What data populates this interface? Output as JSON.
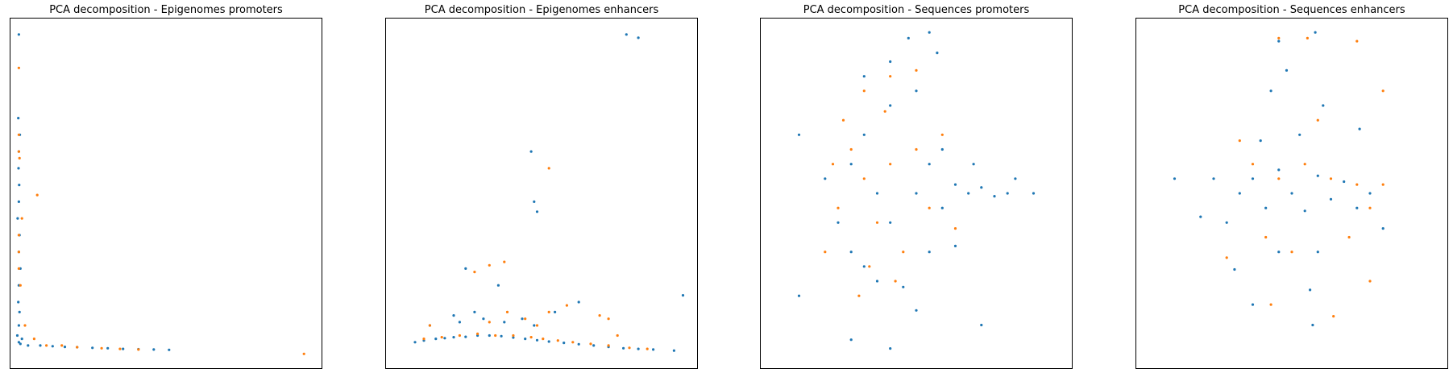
{
  "figure": {
    "colors": {
      "class_0": "#1f77b4",
      "class_1": "#ff7f0e",
      "axes": "#000000",
      "background": "#ffffff"
    }
  },
  "chart_data": [
    {
      "type": "scatter",
      "title": "PCA decomposition - Epigenomes promoters",
      "xlabel": "",
      "ylabel": "",
      "xlim": [
        -2,
        100
      ],
      "ylim": [
        -5,
        100
      ],
      "grid": false,
      "ticks": false,
      "series": [
        {
          "color": "#1f77b4",
          "points": [
            [
              1,
              3
            ],
            [
              1.5,
              2.5
            ],
            [
              2,
              4
            ],
            [
              0.5,
              5
            ],
            [
              1,
              8
            ],
            [
              1.2,
              12
            ],
            [
              0.8,
              15
            ],
            [
              1,
              20
            ],
            [
              1.5,
              25
            ],
            [
              1,
              30
            ],
            [
              1.2,
              35
            ],
            [
              0.6,
              40
            ],
            [
              1,
              45
            ],
            [
              1.1,
              50
            ],
            [
              0.9,
              55
            ],
            [
              1,
              60
            ],
            [
              1.3,
              65
            ],
            [
              0.8,
              70
            ],
            [
              1,
              95
            ],
            [
              4,
              2
            ],
            [
              8,
              2
            ],
            [
              12,
              1.8
            ],
            [
              16,
              1.6
            ],
            [
              20,
              1.5
            ],
            [
              25,
              1.3
            ],
            [
              30,
              1.2
            ],
            [
              35,
              1
            ],
            [
              40,
              0.9
            ],
            [
              45,
              0.8
            ],
            [
              50,
              0.7
            ]
          ]
        },
        {
          "color": "#ff7f0e",
          "points": [
            [
              1,
              85
            ],
            [
              1,
              65
            ],
            [
              1,
              60
            ],
            [
              1.2,
              58
            ],
            [
              7,
              47
            ],
            [
              2,
              40
            ],
            [
              1,
              35
            ],
            [
              1,
              30
            ],
            [
              1,
              25
            ],
            [
              1.5,
              20
            ],
            [
              3,
              8
            ],
            [
              6,
              4
            ],
            [
              10,
              2
            ],
            [
              15,
              2
            ],
            [
              20,
              1.5
            ],
            [
              28,
              1.2
            ],
            [
              34,
              1
            ],
            [
              40,
              0.8
            ],
            [
              94,
              -0.5
            ]
          ]
        }
      ]
    },
    {
      "type": "scatter",
      "title": "PCA decomposition - Epigenomes enhancers",
      "xlabel": "",
      "ylabel": "",
      "xlim": [
        -5,
        100
      ],
      "ylim": [
        -5,
        100
      ],
      "grid": false,
      "ticks": false,
      "series": [
        {
          "color": "#1f77b4",
          "points": [
            [
              5,
              3
            ],
            [
              8,
              3.5
            ],
            [
              12,
              4
            ],
            [
              15,
              4.2
            ],
            [
              18,
              4.5
            ],
            [
              22,
              4.6
            ],
            [
              26,
              5
            ],
            [
              30,
              5
            ],
            [
              34,
              4.8
            ],
            [
              38,
              4.4
            ],
            [
              42,
              4
            ],
            [
              46,
              3.6
            ],
            [
              50,
              3.2
            ],
            [
              55,
              2.8
            ],
            [
              60,
              2.4
            ],
            [
              65,
              2
            ],
            [
              70,
              1.6
            ],
            [
              75,
              1.2
            ],
            [
              80,
              1
            ],
            [
              85,
              0.8
            ],
            [
              92,
              0.5
            ],
            [
              10,
              8
            ],
            [
              20,
              9
            ],
            [
              28,
              10
            ],
            [
              35,
              9
            ],
            [
              45,
              8
            ],
            [
              52,
              12
            ],
            [
              33,
              20
            ],
            [
              41,
              10
            ],
            [
              25,
              12
            ],
            [
              18,
              11
            ],
            [
              76,
              95
            ],
            [
              80,
              94
            ],
            [
              44,
              60
            ],
            [
              45,
              45
            ],
            [
              46,
              42
            ],
            [
              95,
              17
            ],
            [
              60,
              15
            ],
            [
              22,
              25
            ]
          ]
        },
        {
          "color": "#ff7f0e",
          "points": [
            [
              8,
              4
            ],
            [
              14,
              4.5
            ],
            [
              20,
              5
            ],
            [
              26,
              5.5
            ],
            [
              32,
              5
            ],
            [
              38,
              5
            ],
            [
              44,
              4.5
            ],
            [
              48,
              4
            ],
            [
              53,
              3.5
            ],
            [
              58,
              3
            ],
            [
              64,
              2.5
            ],
            [
              70,
              2
            ],
            [
              77,
              1.3
            ],
            [
              83,
              1
            ],
            [
              10,
              8
            ],
            [
              30,
              9
            ],
            [
              36,
              12
            ],
            [
              42,
              10
            ],
            [
              46,
              8
            ],
            [
              50,
              12
            ],
            [
              56,
              14
            ],
            [
              67,
              11
            ],
            [
              70,
              10
            ],
            [
              73,
              5
            ],
            [
              35,
              27
            ],
            [
              30,
              26
            ],
            [
              25,
              24
            ],
            [
              50,
              55
            ]
          ]
        }
      ]
    },
    {
      "type": "scatter",
      "title": "PCA decomposition - Sequences promoters",
      "xlabel": "",
      "ylabel": "",
      "xlim": [
        -6,
        6
      ],
      "ylim": [
        -6,
        6
      ],
      "grid": false,
      "ticks": false,
      "series": [
        {
          "color": "#1f77b4",
          "points": [
            [
              -2.5,
              1
            ],
            [
              -2,
              2
            ],
            [
              -1.5,
              0
            ],
            [
              -1,
              -1
            ],
            [
              0,
              0
            ],
            [
              0.5,
              1
            ],
            [
              1,
              -0.5
            ],
            [
              1.5,
              0.3
            ],
            [
              2,
              0
            ],
            [
              2.5,
              0.2
            ],
            [
              3,
              -0.1
            ],
            [
              -3,
              -1
            ],
            [
              -2,
              -2.5
            ],
            [
              -1,
              3
            ],
            [
              0,
              3.5
            ],
            [
              -1.5,
              -3
            ],
            [
              0.5,
              -2
            ],
            [
              1,
              1.5
            ],
            [
              -3.5,
              0.5
            ],
            [
              -2.5,
              -2
            ],
            [
              3.5,
              0
            ],
            [
              4.5,
              0
            ],
            [
              -1,
              4.5
            ],
            [
              0,
              -4
            ],
            [
              -2,
              4
            ],
            [
              1.5,
              -1.8
            ],
            [
              2.2,
              1
            ],
            [
              -0.5,
              -3.2
            ],
            [
              3.8,
              0.5
            ],
            [
              -4.5,
              -3.5
            ],
            [
              -4.5,
              2
            ],
            [
              -0.3,
              5.3
            ],
            [
              0.8,
              4.8
            ],
            [
              2.5,
              -4.5
            ],
            [
              -2.5,
              -5
            ],
            [
              -1,
              -5.3
            ],
            [
              0.5,
              5.5
            ]
          ]
        },
        {
          "color": "#ff7f0e",
          "points": [
            [
              -2.5,
              1.5
            ],
            [
              -2,
              0.5
            ],
            [
              -1.5,
              -1
            ],
            [
              -1,
              1
            ],
            [
              -0.5,
              -2
            ],
            [
              0,
              1.5
            ],
            [
              -3,
              -0.5
            ],
            [
              -2.8,
              2.5
            ],
            [
              -1.8,
              -2.5
            ],
            [
              -2,
              3.5
            ],
            [
              0.5,
              -0.5
            ],
            [
              -3.5,
              -2
            ],
            [
              -2.2,
              -3.5
            ],
            [
              1,
              2
            ],
            [
              -1,
              4
            ],
            [
              0,
              4.2
            ],
            [
              -3.2,
              1
            ],
            [
              -0.8,
              -3
            ],
            [
              1.5,
              -1.2
            ],
            [
              -1.2,
              2.8
            ]
          ]
        }
      ]
    },
    {
      "type": "scatter",
      "title": "PCA decomposition - Sequences enhancers",
      "xlabel": "",
      "ylabel": "",
      "xlim": [
        -6,
        6
      ],
      "ylim": [
        -6,
        6
      ],
      "grid": false,
      "ticks": false,
      "series": [
        {
          "color": "#1f77b4",
          "points": [
            [
              -1.5,
              0.5
            ],
            [
              -1,
              -0.5
            ],
            [
              -0.5,
              0.8
            ],
            [
              0,
              0
            ],
            [
              0.5,
              -0.6
            ],
            [
              1,
              0.6
            ],
            [
              1.5,
              -0.2
            ],
            [
              2,
              0.4
            ],
            [
              -2,
              0
            ],
            [
              -2.5,
              -1
            ],
            [
              -1.2,
              1.8
            ],
            [
              0.3,
              2
            ],
            [
              1,
              -2
            ],
            [
              -0.5,
              -2
            ],
            [
              2.5,
              -0.5
            ],
            [
              -3,
              0.5
            ],
            [
              3,
              0
            ],
            [
              -0.8,
              3.5
            ],
            [
              0.7,
              -3.3
            ],
            [
              -2.2,
              -2.6
            ],
            [
              -0.2,
              4.2
            ],
            [
              1.2,
              3
            ],
            [
              -1.5,
              -3.8
            ],
            [
              0.8,
              -4.5
            ],
            [
              -0.5,
              5.2
            ],
            [
              2.6,
              2.2
            ],
            [
              3.5,
              -1.2
            ],
            [
              -3.5,
              -0.8
            ],
            [
              -4.5,
              0.5
            ],
            [
              0.9,
              5.5
            ]
          ]
        },
        {
          "color": "#ff7f0e",
          "points": [
            [
              -1.5,
              1
            ],
            [
              -0.5,
              0.5
            ],
            [
              0.5,
              1
            ],
            [
              1.5,
              0.5
            ],
            [
              2.5,
              0.3
            ],
            [
              3,
              -0.5
            ],
            [
              3.5,
              0.3
            ],
            [
              2.2,
              -1.5
            ],
            [
              -1,
              -1.5
            ],
            [
              0,
              -2
            ],
            [
              1,
              2.5
            ],
            [
              -2,
              1.8
            ],
            [
              0.6,
              5.3
            ],
            [
              3.5,
              3.5
            ],
            [
              3,
              -3
            ],
            [
              -0.8,
              -3.8
            ],
            [
              1.6,
              -4.2
            ],
            [
              -2.5,
              -2.2
            ],
            [
              -0.5,
              5.3
            ],
            [
              2.5,
              5.2
            ]
          ]
        }
      ]
    }
  ]
}
